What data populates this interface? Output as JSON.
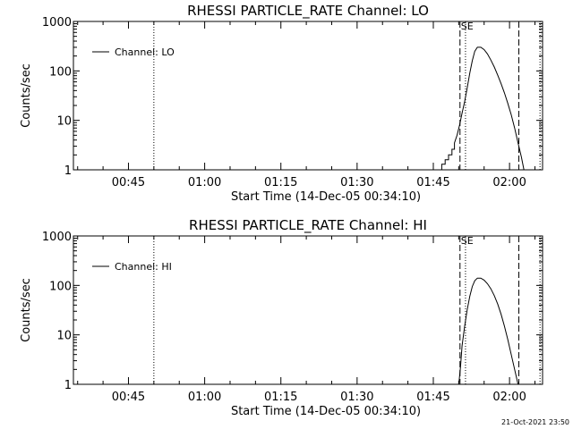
{
  "chart_data": [
    {
      "type": "line",
      "title": "RHESSI PARTICLE_RATE Channel: LO",
      "xlabel": "Start Time (14-Dec-05 00:34:10)",
      "ylabel": "Counts/sec",
      "y_scale": "log",
      "xlim": [
        "00:34:10",
        "02:06:30"
      ],
      "ylim": [
        1,
        1000
      ],
      "x_tick_labels": [
        "00:45",
        "01:00",
        "01:15",
        "01:30",
        "01:45",
        "02:00"
      ],
      "y_tick_labels": [
        "1",
        "10",
        "100",
        "1000"
      ],
      "grid": false,
      "legend": {
        "position": "top-left",
        "entries": [
          "Channel: LO"
        ]
      },
      "annotations": [
        "SE"
      ],
      "markers": [
        {
          "style": "dotted",
          "x": "00:50:00"
        },
        {
          "style": "dashed",
          "x": "01:50:15"
        },
        {
          "style": "dotted",
          "x": "01:51:20"
        },
        {
          "style": "dashed",
          "x": "02:01:50"
        },
        {
          "style": "dotted",
          "x": "02:06:00"
        }
      ],
      "series": [
        {
          "name": "Channel: LO",
          "x": [
            "01:46:00",
            "01:46:40",
            "01:46:40",
            "01:47:20",
            "01:47:20",
            "01:48:00",
            "01:48:00",
            "01:48:40",
            "01:48:40",
            "01:49:10",
            "01:49:10",
            "01:49:40",
            "01:50:10",
            "01:50:40",
            "01:51:10",
            "01:51:40",
            "01:52:10",
            "01:52:40",
            "01:53:10",
            "01:53:40",
            "01:54:20",
            "01:55:00",
            "01:55:40",
            "01:56:20",
            "01:57:00",
            "01:57:40",
            "01:58:20",
            "01:59:00",
            "01:59:40",
            "02:00:20",
            "02:01:00",
            "02:01:40",
            "02:02:20",
            "02:02:50"
          ],
          "values": [
            1,
            1,
            1.3,
            1.3,
            1.6,
            1.6,
            2,
            2,
            2.6,
            2.6,
            3.5,
            5,
            8,
            14,
            24,
            45,
            90,
            160,
            250,
            300,
            300,
            270,
            220,
            165,
            120,
            82,
            55,
            36,
            22,
            13,
            7,
            3.5,
            1.8,
            1
          ]
        }
      ]
    },
    {
      "type": "line",
      "title": "RHESSI PARTICLE_RATE Channel: HI",
      "xlabel": "Start Time (14-Dec-05 00:34:10)",
      "ylabel": "Counts/sec",
      "y_scale": "log",
      "xlim": [
        "00:34:10",
        "02:06:30"
      ],
      "ylim": [
        1,
        1000
      ],
      "x_tick_labels": [
        "00:45",
        "01:00",
        "01:15",
        "01:30",
        "01:45",
        "02:00"
      ],
      "y_tick_labels": [
        "1",
        "10",
        "100",
        "1000"
      ],
      "grid": false,
      "legend": {
        "position": "top-left",
        "entries": [
          "Channel: HI"
        ]
      },
      "annotations": [
        "SE"
      ],
      "markers": [
        {
          "style": "dotted",
          "x": "00:50:00"
        },
        {
          "style": "dashed",
          "x": "01:50:15"
        },
        {
          "style": "dotted",
          "x": "01:51:20"
        },
        {
          "style": "dashed",
          "x": "02:01:50"
        },
        {
          "style": "dotted",
          "x": "02:06:00"
        }
      ],
      "series": [
        {
          "name": "Channel: HI",
          "x": [
            "01:50:00",
            "01:50:20",
            "01:50:40",
            "01:51:10",
            "01:51:40",
            "01:52:10",
            "01:52:40",
            "01:53:10",
            "01:53:40",
            "01:54:20",
            "01:55:00",
            "01:55:40",
            "01:56:20",
            "01:57:00",
            "01:57:40",
            "01:58:20",
            "01:59:00",
            "01:59:40",
            "02:00:20",
            "02:01:00",
            "02:01:40"
          ],
          "values": [
            1,
            2.2,
            6,
            15,
            32,
            60,
            95,
            125,
            140,
            140,
            128,
            108,
            85,
            62,
            42,
            26,
            15,
            8,
            4,
            2,
            1
          ]
        }
      ]
    }
  ],
  "footer": {
    "timestamp": "21-Oct-2021 23:50"
  }
}
